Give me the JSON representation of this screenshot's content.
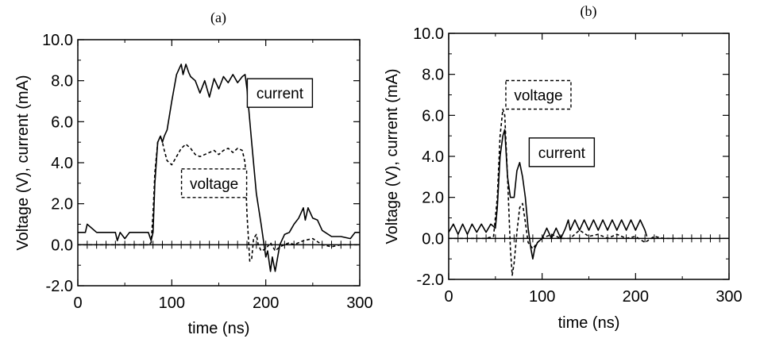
{
  "chart_data": [
    {
      "type": "line",
      "title": "(a)",
      "xlabel": "time (ns)",
      "ylabel": "Voltage (V), current (mA)",
      "xlim": [
        0,
        300
      ],
      "ylim": [
        -2.0,
        10.0
      ],
      "xticks": [
        0,
        100,
        200,
        300
      ],
      "xtick_labels": [
        "0",
        "100",
        "200",
        "300"
      ],
      "yticks": [
        -2,
        0,
        2,
        4,
        6,
        8,
        10
      ],
      "ytick_labels": [
        "-2.0",
        "0.0",
        "2.0",
        "4.0",
        "6.0",
        "8.0",
        "10.0"
      ],
      "series": [
        {
          "name": "current",
          "style": "solid",
          "x": [
            0,
            8,
            10,
            20,
            40,
            42,
            45,
            50,
            55,
            60,
            70,
            75,
            78,
            80,
            82,
            85,
            88,
            90,
            92,
            95,
            100,
            105,
            108,
            110,
            112,
            115,
            118,
            120,
            125,
            130,
            135,
            140,
            145,
            150,
            155,
            160,
            165,
            170,
            175,
            178,
            180,
            185,
            190,
            195,
            200,
            202,
            205,
            207,
            210,
            215,
            220,
            225,
            230,
            235,
            240,
            242,
            245,
            250,
            255,
            260,
            270,
            280,
            290,
            295,
            300
          ],
          "y": [
            0.6,
            0.6,
            1.0,
            0.6,
            0.6,
            0.2,
            0.6,
            0.3,
            0.6,
            0.6,
            0.6,
            0.6,
            0.2,
            0.6,
            3.0,
            5.0,
            5.3,
            5.0,
            5.3,
            5.6,
            7.0,
            8.3,
            8.6,
            8.8,
            8.3,
            8.8,
            8.4,
            8.2,
            8.0,
            7.4,
            8.0,
            7.2,
            8.1,
            7.6,
            8.2,
            7.9,
            8.3,
            7.9,
            8.2,
            8.3,
            7.6,
            5.0,
            2.5,
            1.0,
            -0.6,
            -0.3,
            -1.3,
            -0.6,
            -1.3,
            0.0,
            0.5,
            0.6,
            1.0,
            1.3,
            1.8,
            1.2,
            1.8,
            1.3,
            1.2,
            0.7,
            0.4,
            0.4,
            0.3,
            0.6,
            0.6
          ]
        },
        {
          "name": "voltage",
          "style": "dashed",
          "x": [
            0,
            10,
            20,
            30,
            40,
            50,
            60,
            70,
            75,
            78,
            80,
            82,
            85,
            88,
            90,
            92,
            95,
            100,
            105,
            110,
            115,
            120,
            125,
            130,
            135,
            140,
            145,
            150,
            155,
            160,
            165,
            170,
            175,
            178,
            180,
            183,
            185,
            187,
            190,
            192,
            195,
            200,
            205,
            210,
            215,
            220,
            225,
            230,
            240,
            250,
            260,
            270,
            280,
            290,
            300
          ],
          "y": [
            0.0,
            0.0,
            0.0,
            0.0,
            0.0,
            0.0,
            0.0,
            0.0,
            0.0,
            0.1,
            1.5,
            3.5,
            5.0,
            5.3,
            5.0,
            4.6,
            4.1,
            3.9,
            4.3,
            4.7,
            4.9,
            4.7,
            4.4,
            4.3,
            4.4,
            4.5,
            4.6,
            4.4,
            4.6,
            4.7,
            4.5,
            4.7,
            4.6,
            4.0,
            1.5,
            -0.8,
            -0.7,
            0.3,
            0.5,
            0.0,
            -0.3,
            -0.2,
            0.1,
            -0.3,
            -0.1,
            0.0,
            0.1,
            0.0,
            0.2,
            0.3,
            0.0,
            -0.1,
            0.0,
            0.0,
            0.0
          ]
        }
      ],
      "legend": [
        {
          "label": "current",
          "style": "solid",
          "anchor_x": 215,
          "anchor_y": 7.4
        },
        {
          "label": "voltage",
          "style": "dashed",
          "anchor_x": 145,
          "anchor_y": 3.0
        }
      ]
    },
    {
      "type": "line",
      "title": "(b)",
      "xlabel": "time (ns)",
      "ylabel": "Voltage (V), current (mA)",
      "xlim": [
        0,
        300
      ],
      "ylim": [
        -2.0,
        10.0
      ],
      "xticks": [
        0,
        100,
        200,
        300
      ],
      "xtick_labels": [
        "0",
        "100",
        "200",
        "300"
      ],
      "yticks": [
        -2,
        0,
        2,
        4,
        6,
        8,
        10
      ],
      "ytick_labels": [
        "-2.0",
        "0.0",
        "2.0",
        "4.0",
        "6.0",
        "8.0",
        "10.0"
      ],
      "series": [
        {
          "name": "current",
          "style": "solid",
          "x": [
            0,
            5,
            10,
            15,
            20,
            25,
            30,
            35,
            40,
            45,
            50,
            52,
            55,
            58,
            60,
            63,
            66,
            70,
            73,
            76,
            79,
            82,
            85,
            88,
            90,
            92,
            95,
            100,
            105,
            110,
            115,
            120,
            125,
            128,
            130,
            135,
            140,
            145,
            150,
            155,
            160,
            165,
            170,
            175,
            180,
            185,
            190,
            195,
            200,
            205,
            210,
            212
          ],
          "y": [
            0.3,
            0.7,
            0.2,
            0.7,
            0.2,
            0.7,
            0.3,
            0.7,
            0.3,
            0.7,
            0.5,
            1.5,
            4.0,
            5.0,
            5.3,
            3.0,
            2.0,
            2.0,
            3.3,
            3.7,
            3.0,
            2.0,
            0.5,
            -0.5,
            -1.0,
            -0.5,
            -0.2,
            0.0,
            0.5,
            0.0,
            0.5,
            0.0,
            0.5,
            0.9,
            0.4,
            0.9,
            0.4,
            0.9,
            0.4,
            0.9,
            0.4,
            0.9,
            0.4,
            0.9,
            0.4,
            0.9,
            0.4,
            0.9,
            0.4,
            0.9,
            0.4,
            0.1
          ]
        },
        {
          "name": "voltage",
          "style": "dashed",
          "x": [
            0,
            10,
            20,
            30,
            40,
            48,
            52,
            55,
            58,
            60,
            63,
            66,
            68,
            70,
            73,
            76,
            79,
            82,
            85,
            90,
            95,
            100,
            110,
            120,
            130,
            140,
            150,
            160,
            170,
            180,
            190,
            200,
            210,
            220,
            230,
            240,
            250
          ],
          "y": [
            0.0,
            0.0,
            0.0,
            0.0,
            0.0,
            0.1,
            2.0,
            5.0,
            6.3,
            6.0,
            3.0,
            -0.5,
            -1.8,
            -1.2,
            0.3,
            1.5,
            1.7,
            0.8,
            -0.2,
            -0.5,
            -0.2,
            0.0,
            0.2,
            0.0,
            0.0,
            0.4,
            0.1,
            0.2,
            0.0,
            0.2,
            0.0,
            0.1,
            -0.2,
            0.1,
            0.0,
            0.0,
            0.0
          ]
        }
      ],
      "legend": [
        {
          "label": "voltage",
          "style": "dashed",
          "anchor_x": 96,
          "anchor_y": 7.0
        },
        {
          "label": "current",
          "style": "solid",
          "anchor_x": 121,
          "anchor_y": 4.2
        }
      ]
    }
  ]
}
